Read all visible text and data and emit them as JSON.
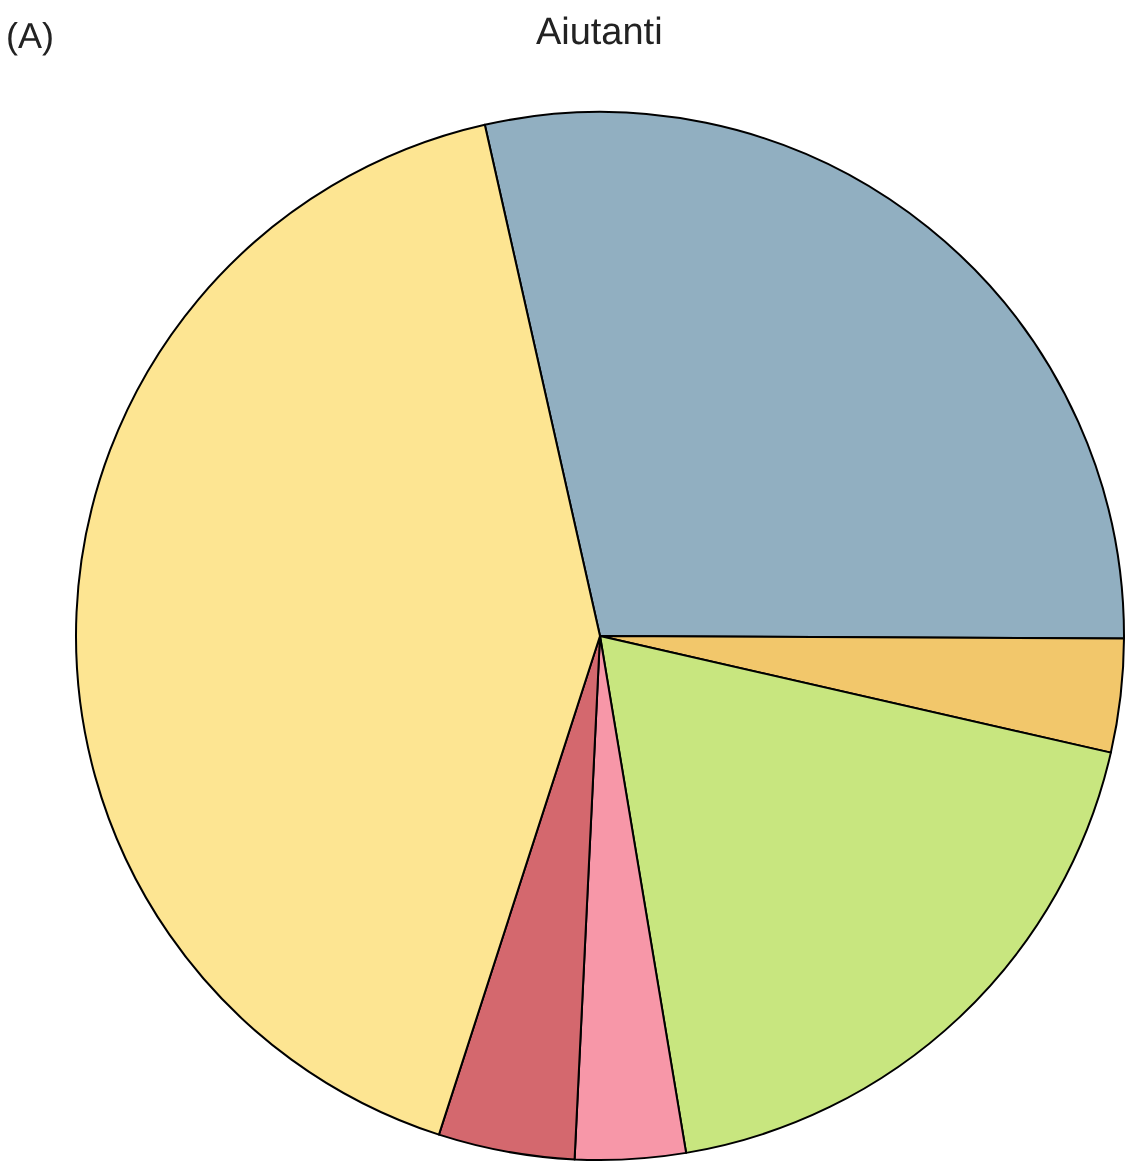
{
  "chart_data": {
    "type": "pie",
    "title": "Aiutanti",
    "annotations": [
      "(A)"
    ],
    "categories": [
      null,
      null,
      null,
      null,
      null,
      null
    ],
    "values": [
      28.6,
      3.5,
      18.8,
      3.4,
      4.2,
      41.5
    ],
    "colors": [
      "#91afc1",
      "#f2c76b",
      "#c8e67f",
      "#f797a8",
      "#d4686e",
      "#fde592"
    ],
    "legend": false
  }
}
